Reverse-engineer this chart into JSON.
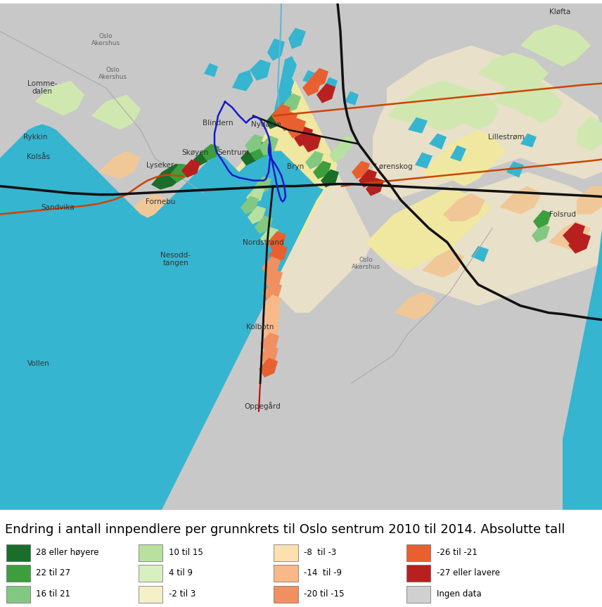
{
  "title": "Endring i antall innpendlere per grunnkrets til Oslo sentrum 2010 til 2014. Absolutte tall",
  "title_fontsize": 13.0,
  "figure_width": 8.56,
  "figure_height": 8.63,
  "legend_items": [
    {
      "label": "28 eller høyere",
      "color": "#1a6e2a"
    },
    {
      "label": "22 til 27",
      "color": "#3d9e3d"
    },
    {
      "label": "16 til 21",
      "color": "#82c882"
    },
    {
      "label": "10 til 15",
      "color": "#b8e0a0"
    },
    {
      "label": "4 til 9",
      "color": "#d8f0c0"
    },
    {
      "label": "-2 til 3",
      "color": "#f5f0c8"
    },
    {
      "label": "-8  til -3",
      "color": "#fde0b0"
    },
    {
      "label": "-14  til -9",
      "color": "#f9b888"
    },
    {
      "label": "-20 til -15",
      "color": "#f09060"
    },
    {
      "label": "-26 til -21",
      "color": "#e86030"
    },
    {
      "label": "-27 eller lavere",
      "color": "#b82020"
    },
    {
      "label": "Ingen data",
      "color": "#d0d0d0"
    }
  ],
  "background_color": "#ffffff",
  "water_color": "#35b5d0",
  "land_gray": "#c8c8c8",
  "land_beige": "#e8e0c8",
  "land_yellow": "#f0e8a0",
  "land_lt_green": "#d0e8b0",
  "land_orange": "#f0c898",
  "road_black": "#111111",
  "road_orange": "#cc4400",
  "road_red": "#cc0000",
  "border_blue": "#1a1acc",
  "border_gray": "#888888"
}
